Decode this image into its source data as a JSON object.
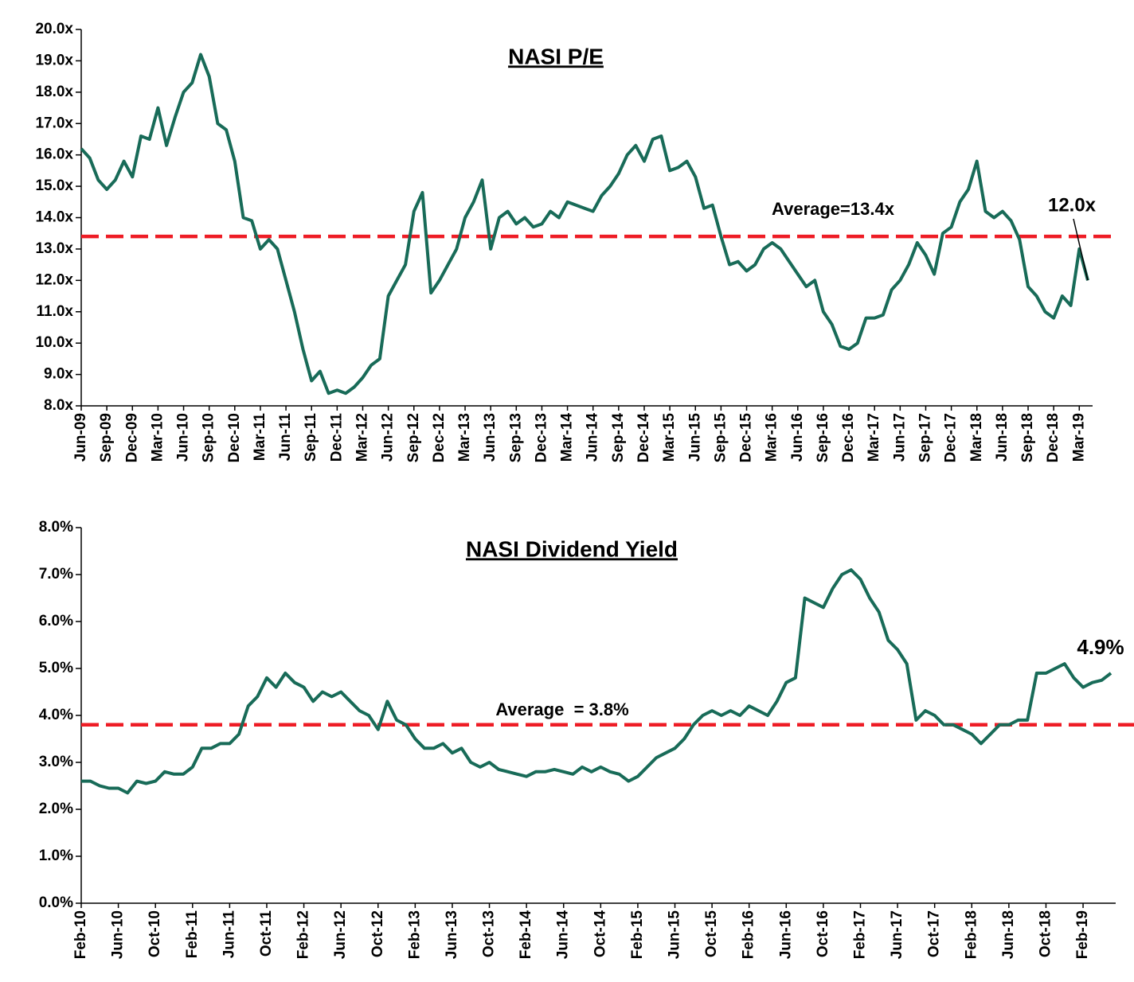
{
  "chart_data": [
    {
      "type": "line",
      "title": "NASI P/E",
      "color": "#186b58",
      "x": [
        "Jun-09",
        "Jul-09",
        "Aug-09",
        "Sep-09",
        "Oct-09",
        "Nov-09",
        "Dec-09",
        "Jan-10",
        "Feb-10",
        "Mar-10",
        "Apr-10",
        "May-10",
        "Jun-10",
        "Jul-10",
        "Aug-10",
        "Sep-10",
        "Oct-10",
        "Nov-10",
        "Dec-10",
        "Jan-11",
        "Feb-11",
        "Mar-11",
        "Apr-11",
        "May-11",
        "Jun-11",
        "Jul-11",
        "Aug-11",
        "Sep-11",
        "Oct-11",
        "Nov-11",
        "Dec-11",
        "Jan-12",
        "Feb-12",
        "Mar-12",
        "Apr-12",
        "May-12",
        "Jun-12",
        "Jul-12",
        "Aug-12",
        "Sep-12",
        "Oct-12",
        "Nov-12",
        "Dec-12",
        "Jan-13",
        "Feb-13",
        "Mar-13",
        "Apr-13",
        "May-13",
        "Jun-13",
        "Jul-13",
        "Aug-13",
        "Sep-13",
        "Oct-13",
        "Nov-13",
        "Dec-13",
        "Jan-14",
        "Feb-14",
        "Mar-14",
        "Apr-14",
        "May-14",
        "Jun-14",
        "Jul-14",
        "Aug-14",
        "Sep-14",
        "Oct-14",
        "Nov-14",
        "Dec-14",
        "Jan-15",
        "Feb-15",
        "Mar-15",
        "Apr-15",
        "May-15",
        "Jun-15",
        "Jul-15",
        "Aug-15",
        "Sep-15",
        "Oct-15",
        "Nov-15",
        "Dec-15",
        "Jan-16",
        "Feb-16",
        "Mar-16",
        "Apr-16",
        "May-16",
        "Jun-16",
        "Jul-16",
        "Aug-16",
        "Sep-16",
        "Oct-16",
        "Nov-16",
        "Dec-16",
        "Jan-17",
        "Feb-17",
        "Mar-17",
        "Apr-17",
        "May-17",
        "Jun-17",
        "Jul-17",
        "Aug-17",
        "Sep-17",
        "Oct-17",
        "Nov-17",
        "Dec-17",
        "Jan-18",
        "Feb-18",
        "Mar-18",
        "Apr-18",
        "May-18",
        "Jun-18",
        "Jul-18",
        "Aug-18",
        "Sep-18",
        "Oct-18",
        "Nov-18",
        "Dec-18",
        "Jan-19",
        "Feb-19",
        "Mar-19",
        "Apr-19"
      ],
      "values": [
        16.2,
        15.9,
        15.2,
        14.9,
        15.2,
        15.8,
        15.3,
        16.6,
        16.5,
        17.5,
        16.3,
        17.2,
        18.0,
        18.3,
        19.2,
        18.5,
        17.0,
        16.8,
        15.8,
        14.0,
        13.9,
        13.0,
        13.3,
        13.0,
        12.0,
        11.0,
        9.8,
        8.8,
        9.1,
        8.4,
        8.5,
        8.4,
        8.6,
        8.9,
        9.3,
        9.5,
        11.5,
        12.0,
        12.5,
        14.2,
        14.8,
        11.6,
        12.0,
        12.5,
        13.0,
        14.0,
        14.5,
        15.2,
        13.0,
        14.0,
        14.2,
        13.8,
        14.0,
        13.7,
        13.8,
        14.2,
        14.0,
        14.5,
        14.4,
        14.3,
        14.2,
        14.7,
        15.0,
        15.4,
        16.0,
        16.3,
        15.8,
        16.5,
        16.6,
        15.5,
        15.6,
        15.8,
        15.3,
        14.3,
        14.4,
        13.4,
        12.5,
        12.6,
        12.3,
        12.5,
        13.0,
        13.2,
        13.0,
        12.6,
        12.2,
        11.8,
        12.0,
        11.0,
        10.6,
        9.9,
        9.8,
        10.0,
        10.8,
        10.8,
        10.9,
        11.7,
        12.0,
        12.5,
        13.2,
        12.8,
        12.2,
        13.5,
        13.7,
        14.5,
        14.9,
        15.8,
        14.2,
        14.0,
        14.2,
        13.9,
        13.3,
        11.8,
        11.5,
        11.0,
        10.8,
        11.5,
        11.2,
        13.0,
        12.0
      ],
      "xticks": [
        "Jun-09",
        "Sep-09",
        "Dec-09",
        "Mar-10",
        "Jun-10",
        "Sep-10",
        "Dec-10",
        "Mar-11",
        "Jun-11",
        "Sep-11",
        "Dec-11",
        "Mar-12",
        "Jun-12",
        "Sep-12",
        "Dec-12",
        "Mar-13",
        "Jun-13",
        "Sep-13",
        "Dec-13",
        "Mar-14",
        "Jun-14",
        "Sep-14",
        "Dec-14",
        "Mar-15",
        "Jun-15",
        "Sep-15",
        "Dec-15",
        "Mar-16",
        "Jun-16",
        "Sep-16",
        "Dec-16",
        "Mar-17",
        "Jun-17",
        "Sep-17",
        "Dec-17",
        "Mar-18",
        "Jun-18",
        "Sep-18",
        "Dec-18",
        "Mar-19"
      ],
      "ylim": [
        8,
        20
      ],
      "yticks": [
        {
          "value": 8,
          "label": "8.0x"
        },
        {
          "value": 9,
          "label": "9.0x"
        },
        {
          "value": 10,
          "label": "10.0x"
        },
        {
          "value": 11,
          "label": "11.0x"
        },
        {
          "value": 12,
          "label": "12.0x"
        },
        {
          "value": 13,
          "label": "13.0x"
        },
        {
          "value": 14,
          "label": "14.0x"
        },
        {
          "value": 15,
          "label": "15.0x"
        },
        {
          "value": 16,
          "label": "16.0x"
        },
        {
          "value": 17,
          "label": "17.0x"
        },
        {
          "value": 18,
          "label": "18.0x"
        },
        {
          "value": 19,
          "label": "19.0x"
        },
        {
          "value": 20,
          "label": "20.0x"
        }
      ],
      "average": {
        "value": 13.4,
        "label": "Average=13.4x",
        "color": "#ee1c25"
      },
      "last_label": "12.0x"
    },
    {
      "type": "line",
      "title": "NASI Dividend Yield",
      "color": "#186b58",
      "x": [
        "Feb-10",
        "Mar-10",
        "Apr-10",
        "May-10",
        "Jun-10",
        "Jul-10",
        "Aug-10",
        "Sep-10",
        "Oct-10",
        "Nov-10",
        "Dec-10",
        "Jan-11",
        "Feb-11",
        "Mar-11",
        "Apr-11",
        "May-11",
        "Jun-11",
        "Jul-11",
        "Aug-11",
        "Sep-11",
        "Oct-11",
        "Nov-11",
        "Dec-11",
        "Jan-12",
        "Feb-12",
        "Mar-12",
        "Apr-12",
        "May-12",
        "Jun-12",
        "Jul-12",
        "Aug-12",
        "Sep-12",
        "Oct-12",
        "Nov-12",
        "Dec-12",
        "Jan-13",
        "Feb-13",
        "Mar-13",
        "Apr-13",
        "May-13",
        "Jun-13",
        "Jul-13",
        "Aug-13",
        "Sep-13",
        "Oct-13",
        "Nov-13",
        "Dec-13",
        "Jan-14",
        "Feb-14",
        "Mar-14",
        "Apr-14",
        "May-14",
        "Jun-14",
        "Jul-14",
        "Aug-14",
        "Sep-14",
        "Oct-14",
        "Nov-14",
        "Dec-14",
        "Jan-15",
        "Feb-15",
        "Mar-15",
        "Apr-15",
        "May-15",
        "Jun-15",
        "Jul-15",
        "Aug-15",
        "Sep-15",
        "Oct-15",
        "Nov-15",
        "Dec-15",
        "Jan-16",
        "Feb-16",
        "Mar-16",
        "Apr-16",
        "May-16",
        "Jun-16",
        "Jul-16",
        "Aug-16",
        "Sep-16",
        "Oct-16",
        "Nov-16",
        "Dec-16",
        "Jan-17",
        "Feb-17",
        "Mar-17",
        "Apr-17",
        "May-17",
        "Jun-17",
        "Jul-17",
        "Aug-17",
        "Sep-17",
        "Oct-17",
        "Nov-17",
        "Dec-17",
        "Jan-18",
        "Feb-18",
        "Mar-18",
        "Apr-18",
        "May-18",
        "Jun-18",
        "Jul-18",
        "Aug-18",
        "Sep-18",
        "Oct-18",
        "Nov-18",
        "Dec-18",
        "Jan-19",
        "Feb-19",
        "Mar-19",
        "Apr-19",
        "May-19"
      ],
      "values": [
        2.6,
        2.6,
        2.5,
        2.45,
        2.45,
        2.35,
        2.6,
        2.55,
        2.6,
        2.8,
        2.75,
        2.75,
        2.9,
        3.3,
        3.3,
        3.4,
        3.4,
        3.6,
        4.2,
        4.4,
        4.8,
        4.6,
        4.9,
        4.7,
        4.6,
        4.3,
        4.5,
        4.4,
        4.5,
        4.3,
        4.1,
        4.0,
        3.7,
        4.3,
        3.9,
        3.8,
        3.5,
        3.3,
        3.3,
        3.4,
        3.2,
        3.3,
        3.0,
        2.9,
        3.0,
        2.85,
        2.8,
        2.75,
        2.7,
        2.8,
        2.8,
        2.85,
        2.8,
        2.75,
        2.9,
        2.8,
        2.9,
        2.8,
        2.75,
        2.6,
        2.7,
        2.9,
        3.1,
        3.2,
        3.3,
        3.5,
        3.8,
        4.0,
        4.1,
        4.0,
        4.1,
        4.0,
        4.2,
        4.1,
        4.0,
        4.3,
        4.7,
        4.8,
        6.5,
        6.4,
        6.3,
        6.7,
        7.0,
        7.1,
        6.9,
        6.5,
        6.2,
        5.6,
        5.4,
        5.1,
        3.9,
        4.1,
        4.0,
        3.8,
        3.8,
        3.7,
        3.6,
        3.4,
        3.6,
        3.8,
        3.8,
        3.9,
        3.9,
        4.9,
        4.9,
        5.0,
        5.1,
        4.8,
        4.6,
        4.7,
        4.75,
        4.9
      ],
      "xticks": [
        "Feb-10",
        "Jun-10",
        "Oct-10",
        "Feb-11",
        "Jun-11",
        "Oct-11",
        "Feb-12",
        "Jun-12",
        "Oct-12",
        "Feb-13",
        "Jun-13",
        "Oct-13",
        "Feb-14",
        "Jun-14",
        "Oct-14",
        "Feb-15",
        "Jun-15",
        "Oct-15",
        "Feb-16",
        "Jun-16",
        "Oct-16",
        "Feb-17",
        "Jun-17",
        "Oct-17",
        "Feb-18",
        "Jun-18",
        "Oct-18",
        "Feb-19"
      ],
      "ylim": [
        0,
        8
      ],
      "yticks": [
        {
          "value": 0,
          "label": "0.0%"
        },
        {
          "value": 1,
          "label": "1.0%"
        },
        {
          "value": 2,
          "label": "2.0%"
        },
        {
          "value": 3,
          "label": "3.0%"
        },
        {
          "value": 4,
          "label": "4.0%"
        },
        {
          "value": 5,
          "label": "5.0%"
        },
        {
          "value": 6,
          "label": "6.0%"
        },
        {
          "value": 7,
          "label": "7.0%"
        },
        {
          "value": 8,
          "label": "8.0%"
        }
      ],
      "average": {
        "value": 3.8,
        "label": "Average  = 3.8%",
        "color": "#ee1c25"
      },
      "last_label": "4.9%"
    }
  ]
}
